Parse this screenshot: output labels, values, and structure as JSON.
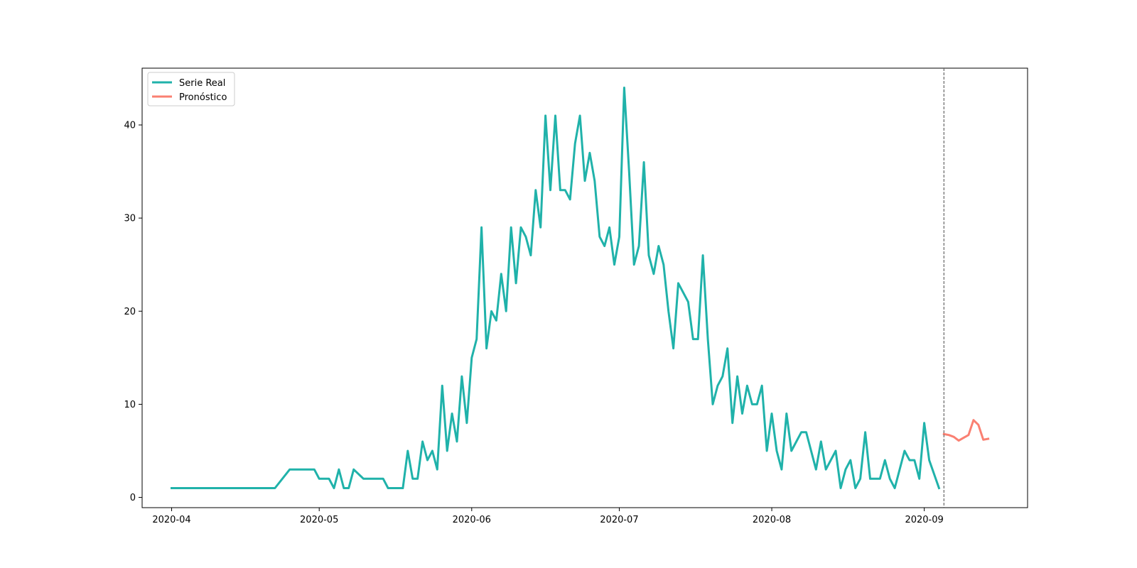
{
  "chart_data": {
    "type": "line",
    "title": "",
    "xlabel": "",
    "ylabel": "",
    "x_axis": {
      "type": "date",
      "range": [
        "2020-03-26",
        "2020-09-22"
      ],
      "ticks": [
        {
          "date": "2020-04-01",
          "label": "2020-04"
        },
        {
          "date": "2020-05-01",
          "label": "2020-05"
        },
        {
          "date": "2020-06-01",
          "label": "2020-06"
        },
        {
          "date": "2020-07-01",
          "label": "2020-07"
        },
        {
          "date": "2020-08-01",
          "label": "2020-08"
        },
        {
          "date": "2020-09-01",
          "label": "2020-09"
        }
      ]
    },
    "y_axis": {
      "range": [
        -1.1,
        46.1
      ],
      "ticks": [
        0,
        10,
        20,
        30,
        40
      ]
    },
    "grid": false,
    "legend": {
      "placement": "upper-left"
    },
    "vline": {
      "date": "2020-09-05",
      "color": "#666666",
      "style": "dashed"
    },
    "series": [
      {
        "name": "Serie Real",
        "color": "#20b2aa",
        "points": [
          [
            "2020-04-01",
            1
          ],
          [
            "2020-04-22",
            1
          ],
          [
            "2020-04-25",
            3
          ],
          [
            "2020-04-30",
            3
          ],
          [
            "2020-05-01",
            2
          ],
          [
            "2020-05-03",
            2
          ],
          [
            "2020-05-04",
            1
          ],
          [
            "2020-05-05",
            3
          ],
          [
            "2020-05-06",
            1
          ],
          [
            "2020-05-07",
            1
          ],
          [
            "2020-05-08",
            3
          ],
          [
            "2020-05-10",
            2
          ],
          [
            "2020-05-14",
            2
          ],
          [
            "2020-05-15",
            1
          ],
          [
            "2020-05-18",
            1
          ],
          [
            "2020-05-19",
            5
          ],
          [
            "2020-05-20",
            2
          ],
          [
            "2020-05-21",
            2
          ],
          [
            "2020-05-22",
            6
          ],
          [
            "2020-05-23",
            4
          ],
          [
            "2020-05-24",
            5
          ],
          [
            "2020-05-25",
            3
          ],
          [
            "2020-05-26",
            12
          ],
          [
            "2020-05-27",
            5
          ],
          [
            "2020-05-28",
            9
          ],
          [
            "2020-05-29",
            6
          ],
          [
            "2020-05-30",
            13
          ],
          [
            "2020-05-31",
            8
          ],
          [
            "2020-06-01",
            15
          ],
          [
            "2020-06-02",
            17
          ],
          [
            "2020-06-03",
            29
          ],
          [
            "2020-06-04",
            16
          ],
          [
            "2020-06-05",
            20
          ],
          [
            "2020-06-06",
            19
          ],
          [
            "2020-06-07",
            24
          ],
          [
            "2020-06-08",
            20
          ],
          [
            "2020-06-09",
            29
          ],
          [
            "2020-06-10",
            23
          ],
          [
            "2020-06-11",
            29
          ],
          [
            "2020-06-12",
            28
          ],
          [
            "2020-06-13",
            26
          ],
          [
            "2020-06-14",
            33
          ],
          [
            "2020-06-15",
            29
          ],
          [
            "2020-06-16",
            41
          ],
          [
            "2020-06-17",
            33
          ],
          [
            "2020-06-18",
            41
          ],
          [
            "2020-06-19",
            33
          ],
          [
            "2020-06-20",
            33
          ],
          [
            "2020-06-21",
            32
          ],
          [
            "2020-06-22",
            38
          ],
          [
            "2020-06-23",
            41
          ],
          [
            "2020-06-24",
            34
          ],
          [
            "2020-06-25",
            37
          ],
          [
            "2020-06-26",
            34
          ],
          [
            "2020-06-27",
            28
          ],
          [
            "2020-06-28",
            27
          ],
          [
            "2020-06-29",
            29
          ],
          [
            "2020-06-30",
            25
          ],
          [
            "2020-07-01",
            28
          ],
          [
            "2020-07-02",
            44
          ],
          [
            "2020-07-03",
            35
          ],
          [
            "2020-07-04",
            25
          ],
          [
            "2020-07-05",
            27
          ],
          [
            "2020-07-06",
            36
          ],
          [
            "2020-07-07",
            26
          ],
          [
            "2020-07-08",
            24
          ],
          [
            "2020-07-09",
            27
          ],
          [
            "2020-07-10",
            25
          ],
          [
            "2020-07-11",
            20
          ],
          [
            "2020-07-12",
            16
          ],
          [
            "2020-07-13",
            23
          ],
          [
            "2020-07-15",
            21
          ],
          [
            "2020-07-16",
            17
          ],
          [
            "2020-07-17",
            17
          ],
          [
            "2020-07-18",
            26
          ],
          [
            "2020-07-19",
            17
          ],
          [
            "2020-07-20",
            10
          ],
          [
            "2020-07-21",
            12
          ],
          [
            "2020-07-22",
            13
          ],
          [
            "2020-07-23",
            16
          ],
          [
            "2020-07-24",
            8
          ],
          [
            "2020-07-25",
            13
          ],
          [
            "2020-07-26",
            9
          ],
          [
            "2020-07-27",
            12
          ],
          [
            "2020-07-28",
            10
          ],
          [
            "2020-07-29",
            10
          ],
          [
            "2020-07-30",
            12
          ],
          [
            "2020-07-31",
            5
          ],
          [
            "2020-08-01",
            9
          ],
          [
            "2020-08-02",
            5
          ],
          [
            "2020-08-03",
            3
          ],
          [
            "2020-08-04",
            9
          ],
          [
            "2020-08-05",
            5
          ],
          [
            "2020-08-07",
            7
          ],
          [
            "2020-08-08",
            7
          ],
          [
            "2020-08-10",
            3
          ],
          [
            "2020-08-11",
            6
          ],
          [
            "2020-08-12",
            3
          ],
          [
            "2020-08-14",
            5
          ],
          [
            "2020-08-15",
            1
          ],
          [
            "2020-08-16",
            3
          ],
          [
            "2020-08-17",
            4
          ],
          [
            "2020-08-18",
            1
          ],
          [
            "2020-08-19",
            2
          ],
          [
            "2020-08-20",
            7
          ],
          [
            "2020-08-21",
            2
          ],
          [
            "2020-08-23",
            2
          ],
          [
            "2020-08-24",
            4
          ],
          [
            "2020-08-25",
            2
          ],
          [
            "2020-08-26",
            1
          ],
          [
            "2020-08-28",
            5
          ],
          [
            "2020-08-29",
            4
          ],
          [
            "2020-08-30",
            4
          ],
          [
            "2020-08-31",
            2
          ],
          [
            "2020-09-01",
            8
          ],
          [
            "2020-09-02",
            4
          ],
          [
            "2020-09-04",
            1
          ]
        ]
      },
      {
        "name": "Pronóstico",
        "color": "#fa8072",
        "points": [
          [
            "2020-09-05",
            6.8
          ],
          [
            "2020-09-06",
            6.7
          ],
          [
            "2020-09-07",
            6.5
          ],
          [
            "2020-09-08",
            6.1
          ],
          [
            "2020-09-09",
            6.4
          ],
          [
            "2020-09-10",
            6.7
          ],
          [
            "2020-09-11",
            8.3
          ],
          [
            "2020-09-12",
            7.8
          ],
          [
            "2020-09-13",
            6.2
          ],
          [
            "2020-09-14",
            6.3
          ]
        ]
      }
    ]
  }
}
